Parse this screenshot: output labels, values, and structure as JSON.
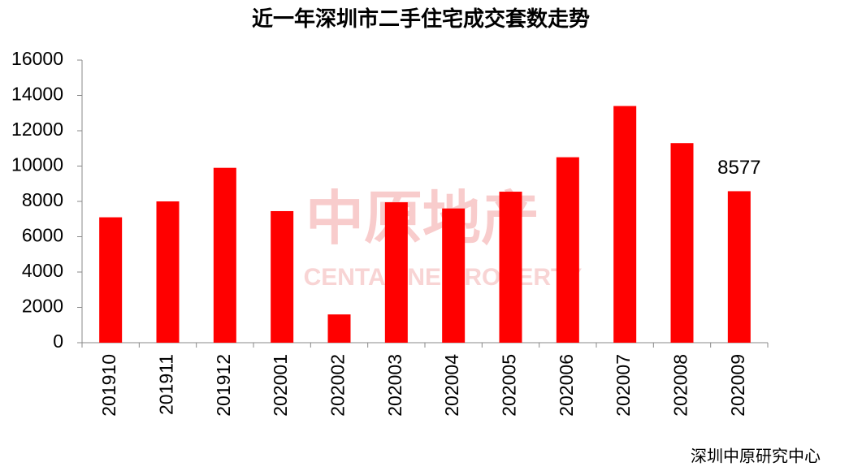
{
  "chart_data": {
    "type": "bar",
    "title": "近一年深圳市二手住宅成交套数走势",
    "categories": [
      "201910",
      "201911",
      "201912",
      "202001",
      "202002",
      "202003",
      "202004",
      "202005",
      "202006",
      "202007",
      "202008",
      "202009"
    ],
    "values": [
      7100,
      8000,
      9900,
      7450,
      1600,
      7950,
      7600,
      8550,
      10500,
      13400,
      11300,
      8577
    ],
    "value_labels": [
      null,
      null,
      null,
      null,
      null,
      null,
      null,
      null,
      null,
      null,
      null,
      "8577"
    ],
    "color": "#ff0000",
    "ylim": [
      0,
      16000
    ],
    "yticks": [
      0,
      2000,
      4000,
      6000,
      8000,
      10000,
      12000,
      14000,
      16000
    ],
    "grid": false,
    "watermark": [
      "中原地产",
      "CENTALINE PROPERTY"
    ],
    "source": "深圳中原研究中心"
  }
}
